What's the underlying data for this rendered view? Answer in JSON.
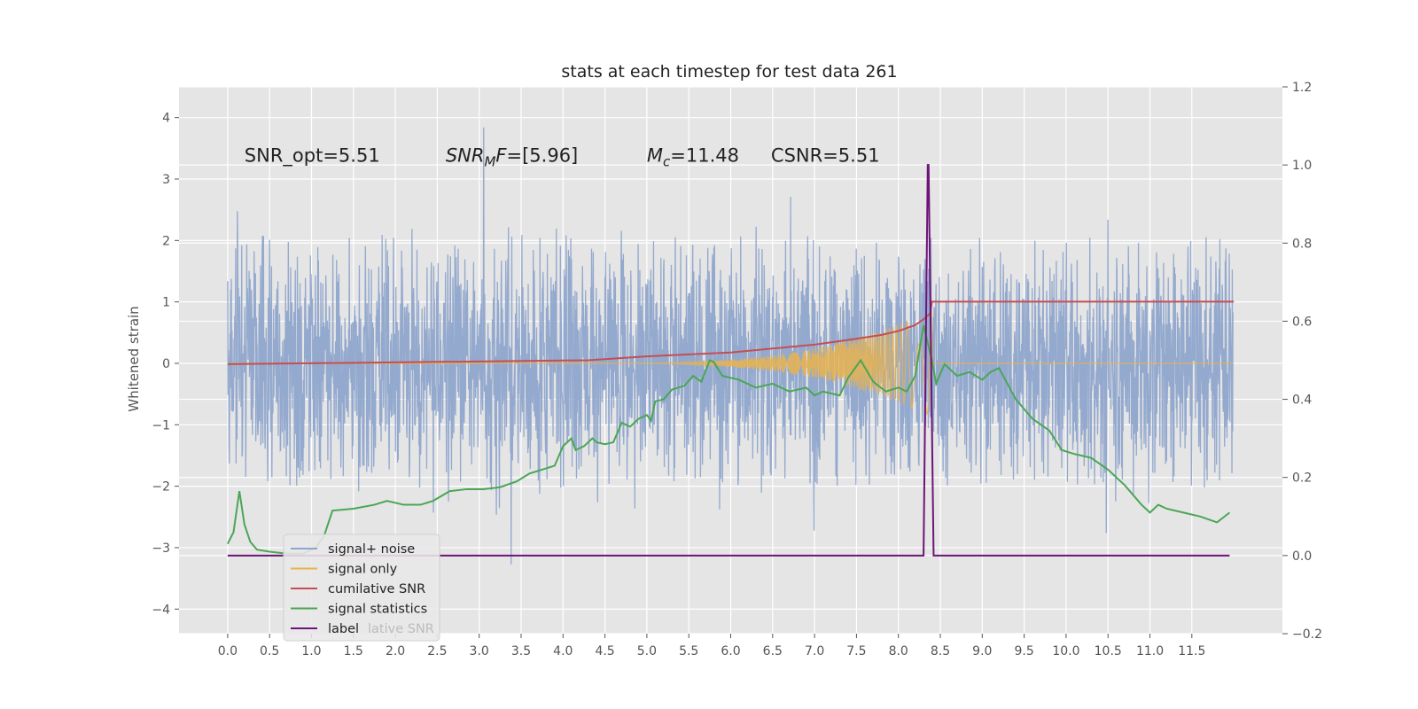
{
  "chart_data": {
    "type": "line",
    "title": "stats at each timestep for test data 261",
    "xlabel": "",
    "ylabel": "Whitened strain",
    "y2label": "",
    "xlim": [
      -0.58,
      12.58
    ],
    "ylim": [
      -4.4,
      4.5
    ],
    "y2lim": [
      -0.2,
      1.2
    ],
    "x_ticks": [
      0.0,
      0.5,
      1.0,
      1.5,
      2.0,
      2.5,
      3.0,
      3.5,
      4.0,
      4.5,
      5.0,
      5.5,
      6.0,
      6.5,
      7.0,
      7.5,
      8.0,
      8.5,
      9.0,
      9.5,
      10.0,
      10.5,
      11.0,
      11.5
    ],
    "x_tick_labels": [
      "0.0",
      "0.5",
      "1.0",
      "1.5",
      "2.0",
      "2.5",
      "3.0",
      "3.5",
      "4.0",
      "4.5",
      "5.0",
      "5.5",
      "6.0",
      "6.5",
      "7.0",
      "7.5",
      "8.0",
      "8.5",
      "9.0",
      "9.5",
      "10.0",
      "10.5",
      "11.0",
      "11.5"
    ],
    "y_ticks": [
      4,
      3,
      2,
      1,
      0,
      -1,
      -2,
      -3,
      -4
    ],
    "y_tick_labels": [
      "4",
      "3",
      "2",
      "1",
      "0",
      "−1",
      "−2",
      "−3",
      "−4"
    ],
    "y2_ticks": [
      1.2,
      1.0,
      0.8,
      0.6,
      0.4,
      0.2,
      0.0,
      -0.2
    ],
    "y2_tick_labels": [
      "1.2",
      "1.0",
      "0.8",
      "0.6",
      "0.4",
      "0.2",
      "0.0",
      "−0.2"
    ],
    "grid": true,
    "legend_position": "lower-left",
    "annotations": [
      {
        "x": 0.2,
        "y": 3.28,
        "parts": [
          {
            "text": "SNR_opt=5.51"
          }
        ]
      },
      {
        "x": 2.6,
        "y": 3.28,
        "parts": [
          {
            "text": "SNR",
            "italic": true
          },
          {
            "text": "M",
            "italic": true,
            "sub": true
          },
          {
            "text": "F",
            "italic": true
          },
          {
            "text": "=[5.96]"
          }
        ]
      },
      {
        "x": 5.0,
        "y": 3.28,
        "parts": [
          {
            "text": "M",
            "italic": true
          },
          {
            "text": "c",
            "italic": true,
            "sub": true
          },
          {
            "text": "=11.48"
          }
        ]
      },
      {
        "x": 6.48,
        "y": 3.28,
        "parts": [
          {
            "text": "CSNR=5.51"
          }
        ]
      }
    ],
    "series": [
      {
        "name": "signal+ noise",
        "axis": "left",
        "color": "#8fa5cc",
        "kind": "noise",
        "x_range": [
          0.0,
          11.99
        ],
        "typical_envelope": [
          -2.0,
          2.1
        ],
        "y_max": 4.1,
        "y_min": -3.9
      },
      {
        "name": "signal only",
        "axis": "left",
        "color": "#e8b34f",
        "kind": "chirp",
        "x_range": [
          0.0,
          11.99
        ],
        "onset": 4.3,
        "merger": 8.38,
        "peak_amplitude": 0.85
      },
      {
        "name": "cumilative SNR",
        "axis": "right",
        "color": "#c44e52",
        "x": [
          0.0,
          4.3,
          5.0,
          5.5,
          6.0,
          6.5,
          7.0,
          7.5,
          7.8,
          8.0,
          8.2,
          8.3,
          8.38,
          8.4,
          12.0
        ],
        "y": [
          0.49,
          0.5,
          0.51,
          0.515,
          0.52,
          0.53,
          0.54,
          0.555,
          0.565,
          0.575,
          0.59,
          0.605,
          0.62,
          0.65,
          0.65
        ]
      },
      {
        "name": "signal statistics",
        "axis": "right",
        "color": "#4aa655",
        "x": [
          0.0,
          0.07,
          0.14,
          0.2,
          0.27,
          0.35,
          0.5,
          0.7,
          0.9,
          1.05,
          1.15,
          1.25,
          1.5,
          1.75,
          1.9,
          2.1,
          2.3,
          2.45,
          2.65,
          2.85,
          3.05,
          3.25,
          3.45,
          3.6,
          3.75,
          3.9,
          4.0,
          4.1,
          4.15,
          4.25,
          4.35,
          4.4,
          4.5,
          4.6,
          4.7,
          4.8,
          4.9,
          5.0,
          5.05,
          5.1,
          5.2,
          5.3,
          5.45,
          5.55,
          5.65,
          5.75,
          5.8,
          5.9,
          6.1,
          6.3,
          6.5,
          6.7,
          6.9,
          7.0,
          7.1,
          7.3,
          7.4,
          7.55,
          7.7,
          7.85,
          8.0,
          8.1,
          8.2,
          8.3,
          8.4,
          8.45,
          8.55,
          8.7,
          8.85,
          9.0,
          9.1,
          9.2,
          9.3,
          9.4,
          9.6,
          9.8,
          9.95,
          10.1,
          10.3,
          10.5,
          10.7,
          10.9,
          11.0,
          11.1,
          11.2,
          11.4,
          11.6,
          11.8,
          11.95
        ],
        "y": [
          0.03,
          0.06,
          0.165,
          0.08,
          0.035,
          0.015,
          0.01,
          0.005,
          0.005,
          0.02,
          0.05,
          0.115,
          0.12,
          0.13,
          0.14,
          0.13,
          0.13,
          0.14,
          0.165,
          0.17,
          0.17,
          0.175,
          0.19,
          0.21,
          0.22,
          0.23,
          0.28,
          0.3,
          0.27,
          0.28,
          0.3,
          0.29,
          0.285,
          0.29,
          0.34,
          0.33,
          0.35,
          0.36,
          0.345,
          0.395,
          0.4,
          0.425,
          0.435,
          0.46,
          0.445,
          0.5,
          0.495,
          0.46,
          0.45,
          0.43,
          0.44,
          0.42,
          0.43,
          0.41,
          0.42,
          0.41,
          0.455,
          0.5,
          0.445,
          0.42,
          0.43,
          0.42,
          0.46,
          0.59,
          0.5,
          0.44,
          0.49,
          0.46,
          0.47,
          0.45,
          0.47,
          0.48,
          0.44,
          0.4,
          0.35,
          0.32,
          0.27,
          0.26,
          0.25,
          0.22,
          0.18,
          0.13,
          0.11,
          0.13,
          0.12,
          0.11,
          0.1,
          0.085,
          0.11
        ],
        "labels": [
          "signal statistics"
        ]
      },
      {
        "name": "label",
        "axis": "right",
        "color": "#6e1478",
        "x": [
          0.0,
          8.3,
          8.35,
          8.36,
          8.42,
          11.95
        ],
        "y": [
          0.0,
          0.0,
          1.0,
          1.0,
          0.0,
          0.0
        ]
      }
    ],
    "legend_overlap_text": "lative SNR",
    "legend": [
      "signal+ noise",
      "signal only",
      "cumilative SNR",
      "signal statistics",
      "label"
    ]
  }
}
